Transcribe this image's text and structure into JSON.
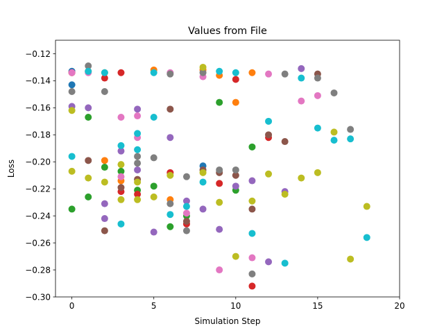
{
  "chart_data": {
    "type": "scatter",
    "title": "Values from File",
    "xlabel": "Simulation Step",
    "ylabel": "Loss",
    "xlim": [
      -1,
      20
    ],
    "ylim": [
      -0.3,
      -0.11
    ],
    "xticks": [
      0,
      5,
      10,
      15,
      20
    ],
    "xtick_labels": [
      "0",
      "5",
      "10",
      "15",
      "20"
    ],
    "yticks": [
      -0.3,
      -0.28,
      -0.26,
      -0.24,
      -0.22,
      -0.2,
      -0.18,
      -0.16,
      -0.14,
      -0.12
    ],
    "ytick_labels": [
      "−0.30",
      "−0.28",
      "−0.26",
      "−0.24",
      "−0.22",
      "−0.20",
      "−0.18",
      "−0.16",
      "−0.14",
      "−0.12"
    ],
    "grid": false,
    "legend": false,
    "series": [
      {
        "color": "#1f77b4",
        "points": [
          [
            0,
            -0.133
          ],
          [
            0,
            -0.143
          ],
          [
            8,
            -0.203
          ]
        ]
      },
      {
        "color": "#ff7f0e",
        "points": [
          [
            0,
            -0.134
          ],
          [
            1,
            -0.133
          ],
          [
            2,
            -0.134
          ],
          [
            2,
            -0.199
          ],
          [
            3,
            -0.214
          ],
          [
            5,
            -0.132
          ],
          [
            6,
            -0.228
          ],
          [
            8,
            -0.132
          ],
          [
            9,
            -0.136
          ],
          [
            10,
            -0.156
          ],
          [
            11,
            -0.134
          ]
        ]
      },
      {
        "color": "#2ca02c",
        "points": [
          [
            0,
            -0.235
          ],
          [
            1,
            -0.167
          ],
          [
            1,
            -0.226
          ],
          [
            2,
            -0.204
          ],
          [
            3,
            -0.207
          ],
          [
            4,
            -0.221
          ],
          [
            5,
            -0.218
          ],
          [
            6,
            -0.248
          ],
          [
            7,
            -0.24
          ],
          [
            9,
            -0.156
          ],
          [
            10,
            -0.221
          ],
          [
            11,
            -0.189
          ]
        ]
      },
      {
        "color": "#d62728",
        "points": [
          [
            0,
            -0.134
          ],
          [
            2,
            -0.138
          ],
          [
            3,
            -0.134
          ],
          [
            3,
            -0.222
          ],
          [
            4,
            -0.224
          ],
          [
            6,
            -0.208
          ],
          [
            7,
            -0.246
          ],
          [
            9,
            -0.216
          ],
          [
            10,
            -0.139
          ],
          [
            11,
            -0.292
          ],
          [
            12,
            -0.182
          ]
        ]
      },
      {
        "color": "#9467bd",
        "points": [
          [
            0,
            -0.159
          ],
          [
            1,
            -0.16
          ],
          [
            2,
            -0.231
          ],
          [
            2,
            -0.242
          ],
          [
            3,
            -0.192
          ],
          [
            4,
            -0.161
          ],
          [
            4,
            -0.206
          ],
          [
            5,
            -0.252
          ],
          [
            6,
            -0.182
          ],
          [
            7,
            -0.229
          ],
          [
            8,
            -0.235
          ],
          [
            9,
            -0.25
          ],
          [
            10,
            -0.218
          ],
          [
            11,
            -0.214
          ],
          [
            12,
            -0.274
          ],
          [
            13,
            -0.222
          ],
          [
            14,
            -0.131
          ]
        ]
      },
      {
        "color": "#8c564b",
        "points": [
          [
            1,
            -0.199
          ],
          [
            2,
            -0.251
          ],
          [
            3,
            -0.219
          ],
          [
            4,
            -0.213
          ],
          [
            6,
            -0.161
          ],
          [
            7,
            -0.244
          ],
          [
            8,
            -0.206
          ],
          [
            9,
            -0.208
          ],
          [
            10,
            -0.21
          ],
          [
            11,
            -0.235
          ],
          [
            12,
            -0.18
          ],
          [
            13,
            -0.185
          ],
          [
            15,
            -0.135
          ]
        ]
      },
      {
        "color": "#e377c2",
        "points": [
          [
            0,
            -0.134
          ],
          [
            1,
            -0.134
          ],
          [
            3,
            -0.167
          ],
          [
            3,
            -0.211
          ],
          [
            4,
            -0.166
          ],
          [
            4,
            -0.182
          ],
          [
            6,
            -0.134
          ],
          [
            7,
            -0.238
          ],
          [
            8,
            -0.137
          ],
          [
            9,
            -0.28
          ],
          [
            11,
            -0.271
          ],
          [
            12,
            -0.135
          ],
          [
            14,
            -0.155
          ],
          [
            15,
            -0.151
          ]
        ]
      },
      {
        "color": "#7f7f7f",
        "points": [
          [
            0,
            -0.148
          ],
          [
            1,
            -0.129
          ],
          [
            2,
            -0.148
          ],
          [
            4,
            -0.196
          ],
          [
            4,
            -0.201
          ],
          [
            5,
            -0.197
          ],
          [
            6,
            -0.135
          ],
          [
            6,
            -0.231
          ],
          [
            7,
            -0.211
          ],
          [
            7,
            -0.251
          ],
          [
            8,
            -0.134
          ],
          [
            9,
            -0.206
          ],
          [
            10,
            -0.206
          ],
          [
            11,
            -0.283
          ],
          [
            13,
            -0.135
          ],
          [
            15,
            -0.138
          ],
          [
            16,
            -0.149
          ],
          [
            17,
            -0.176
          ]
        ]
      },
      {
        "color": "#bcbd22",
        "points": [
          [
            0,
            -0.162
          ],
          [
            0,
            -0.207
          ],
          [
            1,
            -0.212
          ],
          [
            2,
            -0.215
          ],
          [
            3,
            -0.202
          ],
          [
            3,
            -0.228
          ],
          [
            4,
            -0.215
          ],
          [
            4,
            -0.228
          ],
          [
            5,
            -0.226
          ],
          [
            6,
            -0.21
          ],
          [
            8,
            -0.13
          ],
          [
            8,
            -0.208
          ],
          [
            9,
            -0.23
          ],
          [
            10,
            -0.27
          ],
          [
            11,
            -0.229
          ],
          [
            12,
            -0.209
          ],
          [
            13,
            -0.224
          ],
          [
            14,
            -0.212
          ],
          [
            15,
            -0.208
          ],
          [
            16,
            -0.178
          ],
          [
            17,
            -0.272
          ],
          [
            18,
            -0.233
          ]
        ]
      },
      {
        "color": "#17becf",
        "points": [
          [
            0,
            -0.196
          ],
          [
            1,
            -0.133
          ],
          [
            2,
            -0.134
          ],
          [
            3,
            -0.188
          ],
          [
            3,
            -0.246
          ],
          [
            4,
            -0.179
          ],
          [
            4,
            -0.191
          ],
          [
            5,
            -0.167
          ],
          [
            5,
            -0.134
          ],
          [
            6,
            -0.239
          ],
          [
            7,
            -0.233
          ],
          [
            8,
            -0.215
          ],
          [
            9,
            -0.133
          ],
          [
            10,
            -0.134
          ],
          [
            11,
            -0.253
          ],
          [
            12,
            -0.17
          ],
          [
            13,
            -0.275
          ],
          [
            14,
            -0.138
          ],
          [
            15,
            -0.175
          ],
          [
            16,
            -0.184
          ],
          [
            17,
            -0.183
          ],
          [
            18,
            -0.256
          ]
        ]
      }
    ]
  }
}
